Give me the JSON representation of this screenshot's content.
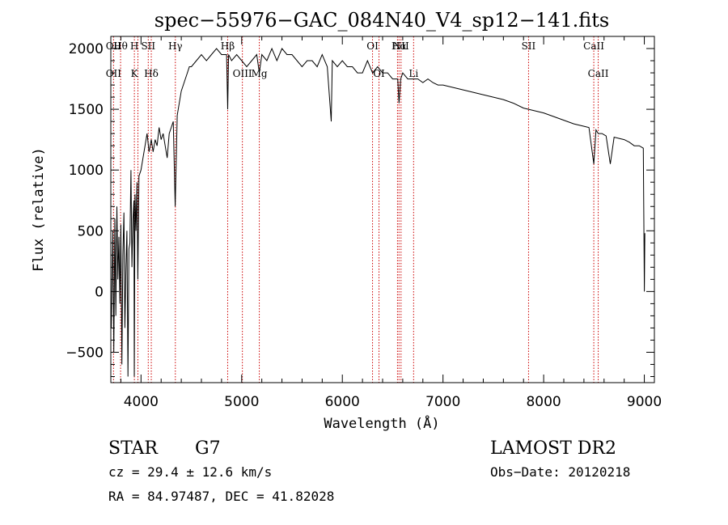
{
  "chart_data": {
    "type": "line",
    "title": "spec−55976−GAC_084N40_V4_sp12−141.fits",
    "xlabel": "Wavelength (Å)",
    "ylabel": "Flux (relative)",
    "xlim": [
      3700,
      9100
    ],
    "ylim": [
      -750,
      2100
    ],
    "x_ticks": [
      4000,
      5000,
      6000,
      7000,
      8000,
      9000
    ],
    "y_ticks": [
      -500,
      0,
      500,
      1000,
      1500,
      2000
    ],
    "x_tick_labels": [
      "4000",
      "5000",
      "6000",
      "7000",
      "8000",
      "9000"
    ],
    "y_tick_labels": [
      "−500",
      "0",
      "500",
      "1000",
      "1500",
      "2000"
    ],
    "grid": false,
    "series": [
      {
        "x": [
          3705,
          3720,
          3730,
          3740,
          3750,
          3760,
          3770,
          3780,
          3790,
          3800,
          3810,
          3820,
          3830,
          3840,
          3850,
          3860,
          3870,
          3880,
          3890,
          3900,
          3910,
          3920,
          3930,
          3933,
          3940,
          3950,
          3960,
          3968,
          3980,
          4000,
          4020,
          4040,
          4060,
          4080,
          4102,
          4120,
          4140,
          4160,
          4180,
          4200,
          4220,
          4240,
          4260,
          4280,
          4300,
          4320,
          4340,
          4360,
          4380,
          4400,
          4420,
          4440,
          4460,
          4480,
          4500,
          4550,
          4600,
          4650,
          4700,
          4750,
          4800,
          4850,
          4861,
          4870,
          4900,
          4950,
          5000,
          5050,
          5100,
          5150,
          5175,
          5200,
          5250,
          5300,
          5350,
          5400,
          5450,
          5500,
          5550,
          5600,
          5650,
          5700,
          5750,
          5800,
          5850,
          5890,
          5900,
          5950,
          6000,
          6050,
          6100,
          6150,
          6200,
          6250,
          6300,
          6350,
          6400,
          6450,
          6500,
          6550,
          6563,
          6580,
          6600,
          6650,
          6700,
          6750,
          6800,
          6850,
          6900,
          6950,
          7000,
          7100,
          7200,
          7300,
          7400,
          7500,
          7600,
          7700,
          7800,
          7900,
          8000,
          8100,
          8200,
          8300,
          8400,
          8450,
          8498,
          8520,
          8542,
          8580,
          8620,
          8662,
          8700,
          8750,
          8800,
          8850,
          8900,
          8950,
          8990,
          9000,
          9005
        ],
        "y": [
          -300,
          500,
          -500,
          600,
          -200,
          700,
          100,
          450,
          -100,
          550,
          -600,
          300,
          650,
          -300,
          200,
          500,
          -700,
          350,
          400,
          1000,
          200,
          600,
          750,
          -700,
          800,
          500,
          900,
          100,
          950,
          1000,
          1100,
          1200,
          1300,
          1150,
          1250,
          1150,
          1250,
          1200,
          1350,
          1250,
          1300,
          1200,
          1100,
          1300,
          1350,
          1400,
          700,
          1450,
          1550,
          1650,
          1700,
          1750,
          1800,
          1850,
          1850,
          1900,
          1950,
          1900,
          1950,
          2000,
          1950,
          1950,
          1500,
          1950,
          1900,
          1950,
          1900,
          1850,
          1900,
          1950,
          1800,
          1950,
          1900,
          2000,
          1900,
          2000,
          1950,
          1950,
          1900,
          1850,
          1900,
          1900,
          1850,
          1950,
          1850,
          1400,
          1900,
          1850,
          1900,
          1850,
          1850,
          1800,
          1800,
          1900,
          1800,
          1850,
          1800,
          1800,
          1750,
          1750,
          1550,
          1750,
          1800,
          1750,
          1750,
          1750,
          1720,
          1750,
          1720,
          1700,
          1700,
          1680,
          1660,
          1640,
          1620,
          1600,
          1580,
          1550,
          1510,
          1490,
          1470,
          1440,
          1410,
          1380,
          1360,
          1350,
          1050,
          1330,
          1300,
          1300,
          1280,
          1050,
          1270,
          1260,
          1250,
          1230,
          1200,
          1200,
          1180,
          0,
          480
        ]
      }
    ],
    "lines": [
      {
        "x": 3727,
        "top": "OΙΙ",
        "bottom": "OΙΙ"
      },
      {
        "x": 3797,
        "top": "Hθ",
        "bottom": ""
      },
      {
        "x": 3934,
        "top": "H",
        "bottom": "K"
      },
      {
        "x": 3969,
        "top": "",
        "bottom": ""
      },
      {
        "x": 4072,
        "top": "SΙΙ",
        "bottom": ""
      },
      {
        "x": 4102,
        "top": "",
        "bottom": "Hδ"
      },
      {
        "x": 4341,
        "top": "Hγ",
        "bottom": ""
      },
      {
        "x": 4861,
        "top": "Hβ",
        "bottom": ""
      },
      {
        "x": 5007,
        "top": "",
        "bottom": "OΙΙΙ"
      },
      {
        "x": 5175,
        "top": "",
        "bottom": "Mg"
      },
      {
        "x": 6300,
        "top": "OΙ",
        "bottom": ""
      },
      {
        "x": 6364,
        "top": "",
        "bottom": "OΙ"
      },
      {
        "x": 6548,
        "top": "",
        "bottom": ""
      },
      {
        "x": 6563,
        "top": "Hα",
        "bottom": ""
      },
      {
        "x": 6583,
        "top": "NΙΙ",
        "bottom": ""
      },
      {
        "x": 6708,
        "top": "",
        "bottom": "Li"
      },
      {
        "x": 7850,
        "top": "SΙΙ",
        "bottom": ""
      },
      {
        "x": 8498,
        "top": "CaΙΙ",
        "bottom": ""
      },
      {
        "x": 8542,
        "top": "",
        "bottom": "CaΙΙ"
      }
    ]
  },
  "info": {
    "class": "STAR",
    "subclass": "G7",
    "cz": "cz = 29.4 ± 12.6 km/s",
    "coords": "RA =  84.97487, DEC =  41.82028",
    "survey": "LAMOST DR2",
    "obs_date": "Obs−Date: 20120218"
  },
  "colors": {
    "spectrum": "#000000",
    "line_marker": "#cc0000",
    "axis": "#000000"
  }
}
